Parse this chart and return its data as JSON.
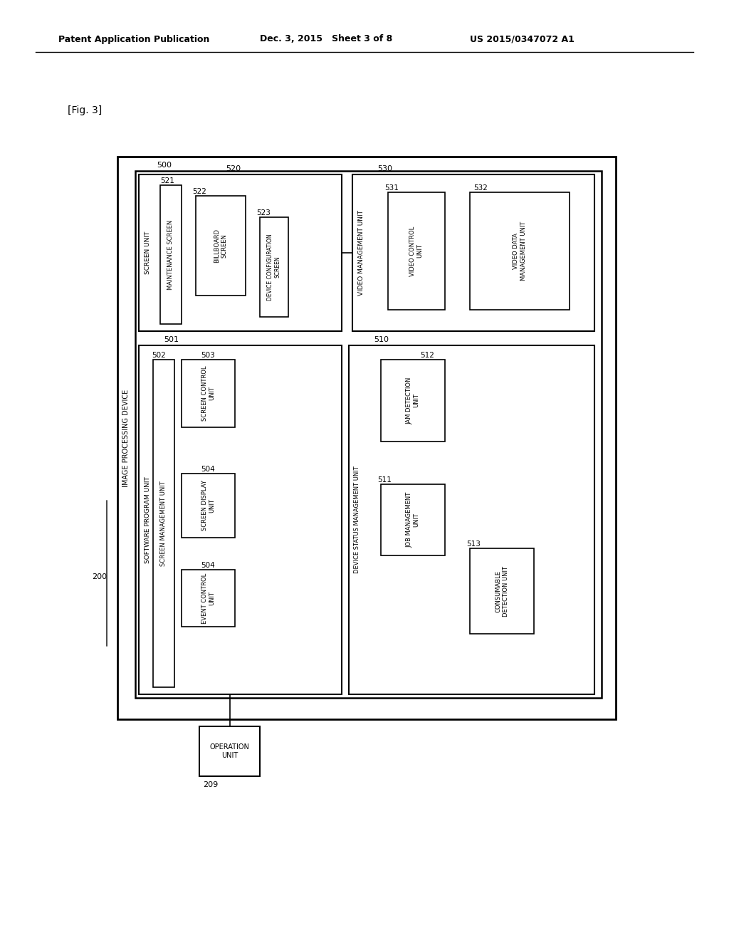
{
  "bg_color": "#ffffff",
  "header_left": "Patent Application Publication",
  "header_mid": "Dec. 3, 2015   Sheet 3 of 8",
  "header_right": "US 2015/0347072 A1",
  "fig_label": "[Fig. 3]"
}
